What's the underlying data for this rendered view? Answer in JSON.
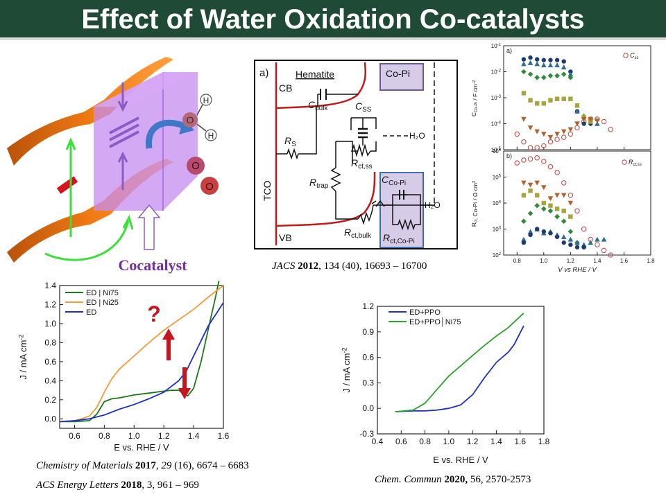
{
  "slide": {
    "title": "Effect of Water Oxidation Co-catalysts"
  },
  "schematic": {
    "cocatalyst_label": "Cocatalyst",
    "atom_h": "H",
    "atom_o": "O"
  },
  "circuit": {
    "panel_label": "a)",
    "hematite": "Hematite",
    "copi": "Co-Pi",
    "cb": "CB",
    "vb": "VB",
    "tco": "TCO",
    "cbulk": "C",
    "cbulk_sub": "bulk",
    "css": "C",
    "css_sub": "SS",
    "rs": "R",
    "rs_sub": "S",
    "rtrap": "R",
    "rtrap_sub": "trap",
    "rctss": "R",
    "rctss_sub": "ct,ss",
    "rctbulk": "R",
    "rctbulk_sub": "ct,bulk",
    "ccopi": "C",
    "ccopi_sub": "Co-Pi",
    "rctcopi": "R",
    "rctcopi_sub": "ct,Co-Pi",
    "h2o_1": "H₂O",
    "h2o_2": "H₂O",
    "citation_journal": "JACS",
    "citation_year": "2012",
    "citation_rest": ", 134 (40), 16693 – 16700"
  },
  "captions": {
    "chem_mater_journal": "Chemistry of Materials",
    "chem_mater_year": "2017",
    "chem_mater_vol": "29",
    "chem_mater_rest": " (16), 6674 – 6683",
    "acs_energy_journal": "ACS Energy Letters",
    "acs_energy_year": "2018",
    "acs_energy_rest": ", 3, 961 – 969",
    "chem_commun_journal": "Chem. Commun",
    "chem_commun_year": "2020,",
    "chem_commun_rest": " 56, 2570-2573"
  },
  "colors": {
    "green": "#1a7a1a",
    "orange": "#f39c3c",
    "blue": "#1c2fc4",
    "red_arrow": "#c8141e",
    "title_bg": "#1f4a36"
  },
  "chart_data": [
    {
      "id": "impedance-top",
      "type": "scatter",
      "panel_label": "a)",
      "ylabel": "C_Co-Pi / F cm^-2",
      "yscale": "log",
      "ylim": [
        1e-05,
        0.1
      ],
      "yticks": [
        "10^-5",
        "10^-4",
        "10^-3",
        "10^-2",
        "10^-1"
      ],
      "xlim": [
        0.7,
        1.8
      ],
      "legend": "C_ss",
      "series": [
        {
          "name": "C_ss",
          "marker": "open-circle",
          "color": "#c0504d",
          "x": [
            0.8,
            0.85,
            0.9,
            0.95,
            1.0,
            1.05,
            1.1,
            1.15,
            1.2,
            1.25,
            1.3,
            1.35,
            1.4,
            1.45,
            1.5
          ],
          "y": [
            4e-05,
            2e-05,
            1.2e-05,
            1.2e-05,
            1.4e-05,
            2e-05,
            2.5e-05,
            3e-05,
            4e-05,
            7e-05,
            0.00012,
            0.00015,
            0.00015,
            0.00012,
            6e-05
          ]
        },
        {
          "name": "",
          "marker": "circle",
          "color": "#1f3a6e",
          "x": [
            0.85,
            0.9,
            0.95,
            1.0,
            1.05,
            1.1,
            1.15,
            1.2,
            1.25,
            1.3,
            1.35
          ],
          "y": [
            0.03,
            0.035,
            0.03,
            0.028,
            0.028,
            0.028,
            0.025,
            0.01,
            0.0003,
            0.0001,
            0.0001
          ]
        },
        {
          "name": "",
          "marker": "triangle",
          "color": "#2f6e8e",
          "x": [
            0.85,
            0.9,
            0.95,
            1.0,
            1.05,
            1.1,
            1.15,
            1.2,
            1.25,
            1.3,
            1.35,
            1.4
          ],
          "y": [
            0.02,
            0.022,
            0.02,
            0.018,
            0.018,
            0.018,
            0.015,
            0.008,
            0.0003,
            0.0002,
            0.00015,
            0.0001
          ]
        },
        {
          "name": "",
          "marker": "diamond",
          "color": "#2e8b3a",
          "x": [
            0.85,
            0.9,
            0.95,
            1.0,
            1.05,
            1.1,
            1.15,
            1.2
          ],
          "y": [
            0.01,
            0.008,
            0.006,
            0.006,
            0.007,
            0.007,
            0.008,
            0.006
          ]
        },
        {
          "name": "",
          "marker": "square",
          "color": "#a6a43c",
          "x": [
            0.85,
            0.9,
            0.95,
            1.0,
            1.05,
            1.1,
            1.15,
            1.2,
            1.25,
            1.3,
            1.35
          ],
          "y": [
            0.0015,
            0.0008,
            0.0006,
            0.0006,
            0.0008,
            0.0009,
            0.0009,
            0.0009,
            0.0005,
            0.00018,
            0.00012
          ]
        },
        {
          "name": "",
          "marker": "triangle-down",
          "color": "#b0622c",
          "x": [
            0.85,
            0.9,
            0.95,
            1.0,
            1.05,
            1.1,
            1.15,
            1.2,
            1.25,
            1.3,
            1.35,
            1.4
          ],
          "y": [
            0.00015,
            7e-05,
            5e-05,
            4e-05,
            3e-05,
            4e-05,
            5e-05,
            6e-05,
            0.0001,
            0.00015,
            0.00015,
            0.00013
          ]
        }
      ]
    },
    {
      "id": "impedance-bottom",
      "type": "scatter",
      "panel_label": "b)",
      "ylabel": "R_ct, Co-Pi / Ω cm^2",
      "xlabel": "V vs RHE / V",
      "yscale": "log",
      "ylim": [
        100,
        1000000
      ],
      "yticks": [
        "10^2",
        "10^3",
        "10^4",
        "10^5",
        "10^6"
      ],
      "xlim": [
        0.7,
        1.8
      ],
      "xticks": [
        "0.8",
        "1.0",
        "1.2",
        "1.4",
        "1.6",
        "1.8"
      ],
      "legend": "R_ct,ss",
      "series": [
        {
          "name": "R_ct,ss",
          "marker": "open-circle",
          "color": "#c0504d",
          "x": [
            0.8,
            0.85,
            0.9,
            0.95,
            1.0,
            1.05,
            1.1,
            1.15,
            1.2,
            1.25,
            1.3,
            1.35,
            1.4,
            1.45,
            1.5
          ],
          "y": [
            350000,
            450000,
            500000,
            550000,
            400000,
            250000,
            150000,
            60000,
            20000,
            5000,
            1000,
            400,
            250,
            150,
            100
          ]
        },
        {
          "name": "",
          "marker": "triangle-down",
          "color": "#b0622c",
          "x": [
            0.85,
            0.9,
            0.95,
            1.0,
            1.05,
            1.1,
            1.15,
            1.2
          ],
          "y": [
            60000,
            50000,
            60000,
            40000,
            15000,
            20000,
            20000,
            10000
          ]
        },
        {
          "name": "",
          "marker": "square",
          "color": "#a6a43c",
          "x": [
            0.85,
            0.9,
            0.95,
            1.0,
            1.05,
            1.1,
            1.15,
            1.2
          ],
          "y": [
            20000,
            30000,
            20000,
            10000,
            8000,
            6000,
            5000,
            3000
          ]
        },
        {
          "name": "",
          "marker": "diamond",
          "color": "#2e8b3a",
          "x": [
            0.85,
            0.9,
            0.95,
            1.0,
            1.05,
            1.1,
            1.15,
            1.2,
            1.25,
            1.3
          ],
          "y": [
            2000,
            4000,
            8000,
            6000,
            5000,
            3000,
            2000,
            800,
            300,
            200
          ]
        },
        {
          "name": "",
          "marker": "triangle",
          "color": "#2f6e8e",
          "x": [
            0.85,
            0.9,
            0.95,
            1.0,
            1.05,
            1.1,
            1.15,
            1.2,
            1.25,
            1.3,
            1.35,
            1.4,
            1.45
          ],
          "y": [
            400,
            800,
            1000,
            700,
            800,
            600,
            500,
            400,
            300,
            250,
            300,
            400,
            400
          ]
        },
        {
          "name": "",
          "marker": "circle",
          "color": "#1f3a6e",
          "x": [
            0.85,
            0.9,
            0.95,
            1.0,
            1.05,
            1.1,
            1.15,
            1.2,
            1.25,
            1.3
          ],
          "y": [
            300,
            600,
            1000,
            800,
            700,
            500,
            300,
            250,
            200,
            200
          ]
        }
      ]
    },
    {
      "id": "lsv-ni",
      "type": "line",
      "xlabel": "E vs. RHE / V",
      "ylabel": "J / mA cm^-2",
      "xlim": [
        0.5,
        1.6
      ],
      "ylim": [
        -0.1,
        1.4
      ],
      "xticks": [
        "0.6",
        "0.8",
        "1.0",
        "1.2",
        "1.4",
        "1.6"
      ],
      "yticks": [
        "0.0",
        "0.2",
        "0.4",
        "0.6",
        "0.8",
        "1.0",
        "1.2",
        "1.4"
      ],
      "annotation": "?",
      "legend": "top-left",
      "series": [
        {
          "name": "ED | Ni75",
          "color": "#1a7a1a",
          "x": [
            0.5,
            0.6,
            0.7,
            0.75,
            0.8,
            0.85,
            0.9,
            1.0,
            1.1,
            1.2,
            1.25,
            1.3,
            1.33,
            1.36,
            1.4,
            1.45,
            1.5,
            1.55,
            1.57
          ],
          "y": [
            -0.03,
            -0.03,
            -0.02,
            0.05,
            0.18,
            0.21,
            0.22,
            0.25,
            0.27,
            0.29,
            0.3,
            0.3,
            0.27,
            0.24,
            0.32,
            0.6,
            0.95,
            1.3,
            1.45
          ]
        },
        {
          "name": "ED | Ni25",
          "color": "#f39c3c",
          "x": [
            0.5,
            0.6,
            0.65,
            0.7,
            0.75,
            0.8,
            0.85,
            0.9,
            1.0,
            1.1,
            1.2,
            1.3,
            1.4,
            1.5,
            1.6
          ],
          "y": [
            -0.03,
            -0.02,
            0.0,
            0.03,
            0.12,
            0.28,
            0.42,
            0.52,
            0.66,
            0.8,
            0.93,
            1.04,
            1.15,
            1.28,
            1.4
          ]
        },
        {
          "name": "ED",
          "color": "#1c2fc4",
          "x": [
            0.5,
            0.6,
            0.7,
            0.8,
            0.9,
            1.0,
            1.1,
            1.2,
            1.3,
            1.35,
            1.4,
            1.45,
            1.5,
            1.55,
            1.6
          ],
          "y": [
            -0.03,
            -0.02,
            0.0,
            0.04,
            0.1,
            0.15,
            0.21,
            0.28,
            0.4,
            0.5,
            0.66,
            0.82,
            0.98,
            1.1,
            1.22
          ]
        }
      ]
    },
    {
      "id": "lsv-ppo",
      "type": "line",
      "xlabel": "E vs. RHE / V",
      "ylabel": "J / mA cm^-2",
      "xlim": [
        0.4,
        1.8
      ],
      "ylim": [
        -0.3,
        1.2
      ],
      "xticks": [
        "0.4",
        "0.6",
        "0.8",
        "1.0",
        "1.2",
        "1.4",
        "1.6",
        "1.8"
      ],
      "yticks": [
        "-0.3",
        "0.0",
        "0.3",
        "0.6",
        "0.9",
        "1.2"
      ],
      "legend": "top-left",
      "series": [
        {
          "name": "ED+PPO",
          "color": "#1c2fc4",
          "x": [
            0.55,
            0.7,
            0.8,
            0.9,
            1.0,
            1.1,
            1.2,
            1.3,
            1.4,
            1.5,
            1.55,
            1.63
          ],
          "y": [
            -0.04,
            -0.03,
            -0.03,
            -0.02,
            0.0,
            0.04,
            0.16,
            0.36,
            0.54,
            0.66,
            0.75,
            0.97
          ]
        },
        {
          "name": "ED+PPO│Ni75",
          "color": "#2aa22a",
          "x": [
            0.55,
            0.7,
            0.8,
            0.9,
            1.0,
            1.1,
            1.2,
            1.3,
            1.4,
            1.5,
            1.63
          ],
          "y": [
            -0.04,
            -0.02,
            0.06,
            0.22,
            0.38,
            0.5,
            0.62,
            0.74,
            0.85,
            0.95,
            1.12
          ]
        }
      ]
    }
  ]
}
